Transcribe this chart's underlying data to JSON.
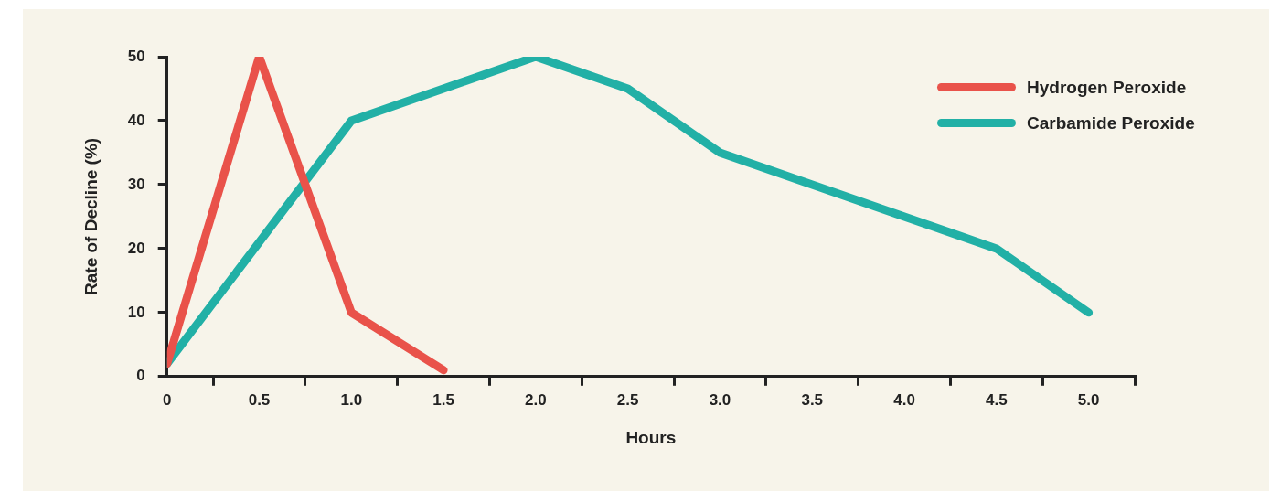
{
  "chart_data": {
    "type": "line",
    "xlabel": "Hours",
    "ylabel": "Rate of Decline (%)",
    "legend": "top right",
    "marker": "none",
    "line_style": "solid",
    "grid": false,
    "xlim": [
      0,
      5.25
    ],
    "xticks": [
      0,
      {
        "value": 0.25,
        "label": null
      },
      0.5,
      {
        "value": 0.75,
        "label": null
      },
      {
        "value": 1,
        "label": "1.0"
      },
      {
        "value": 1.25,
        "label": null
      },
      1.5,
      {
        "value": 1.75,
        "label": null
      },
      {
        "value": 2,
        "label": "2.0"
      },
      {
        "value": 2.25,
        "label": null
      },
      2.5,
      {
        "value": 2.75,
        "label": null
      },
      {
        "value": 3,
        "label": "3.0"
      },
      {
        "value": 3.25,
        "label": null
      },
      3.5,
      {
        "value": 3.75,
        "label": null
      },
      {
        "value": 4,
        "label": "4.0"
      },
      {
        "value": 4.25,
        "label": null
      },
      4.5,
      {
        "value": 4.75,
        "label": null
      },
      {
        "value": 5,
        "label": "5.0"
      },
      {
        "value": 5.25,
        "label": null
      }
    ],
    "ylim": [
      0,
      50
    ],
    "yticks": [
      0,
      10,
      20,
      30,
      40,
      50
    ],
    "series": [
      {
        "name": "Hydrogen Peroxide",
        "color": "#e9524a",
        "x": [
          0,
          0.5,
          1,
          1.5
        ],
        "values": [
          2,
          50,
          10,
          1
        ]
      },
      {
        "name": "Carbamide Peroxide",
        "color": "#22b0a6",
        "x": [
          0,
          1,
          2,
          2.5,
          3,
          4.5,
          5
        ],
        "values": [
          2,
          40,
          50,
          45,
          35,
          20,
          10
        ]
      }
    ]
  }
}
